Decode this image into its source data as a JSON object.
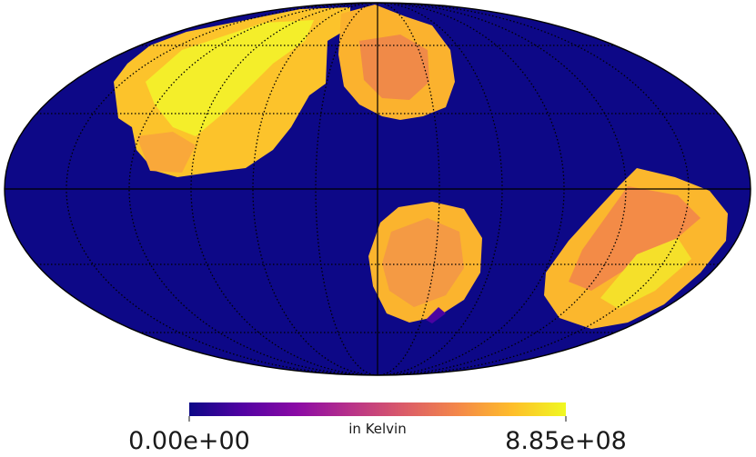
{
  "chart_data": {
    "type": "heatmap",
    "projection": "mollweide",
    "background_value": 0.0,
    "colormap": "plasma",
    "colorbar": {
      "min": 0.0,
      "max": 885000000.0,
      "min_label": "0.00e+00",
      "max_label": "8.85e+08",
      "unit_label": "in Kelvin",
      "colors": [
        "#0d0887",
        "#5302a3",
        "#8b0aa5",
        "#b83289",
        "#db5c68",
        "#f48849",
        "#febd2a",
        "#f0f921"
      ]
    },
    "graticule": true,
    "regions": [
      {
        "name": "upper-left patch",
        "approx_value": 820000000.0
      },
      {
        "name": "upper-center patch",
        "approx_value": 740000000.0
      },
      {
        "name": "center-lower patch",
        "approx_value": 720000000.0
      },
      {
        "name": "right patch",
        "approx_value": 740000000.0
      }
    ]
  }
}
